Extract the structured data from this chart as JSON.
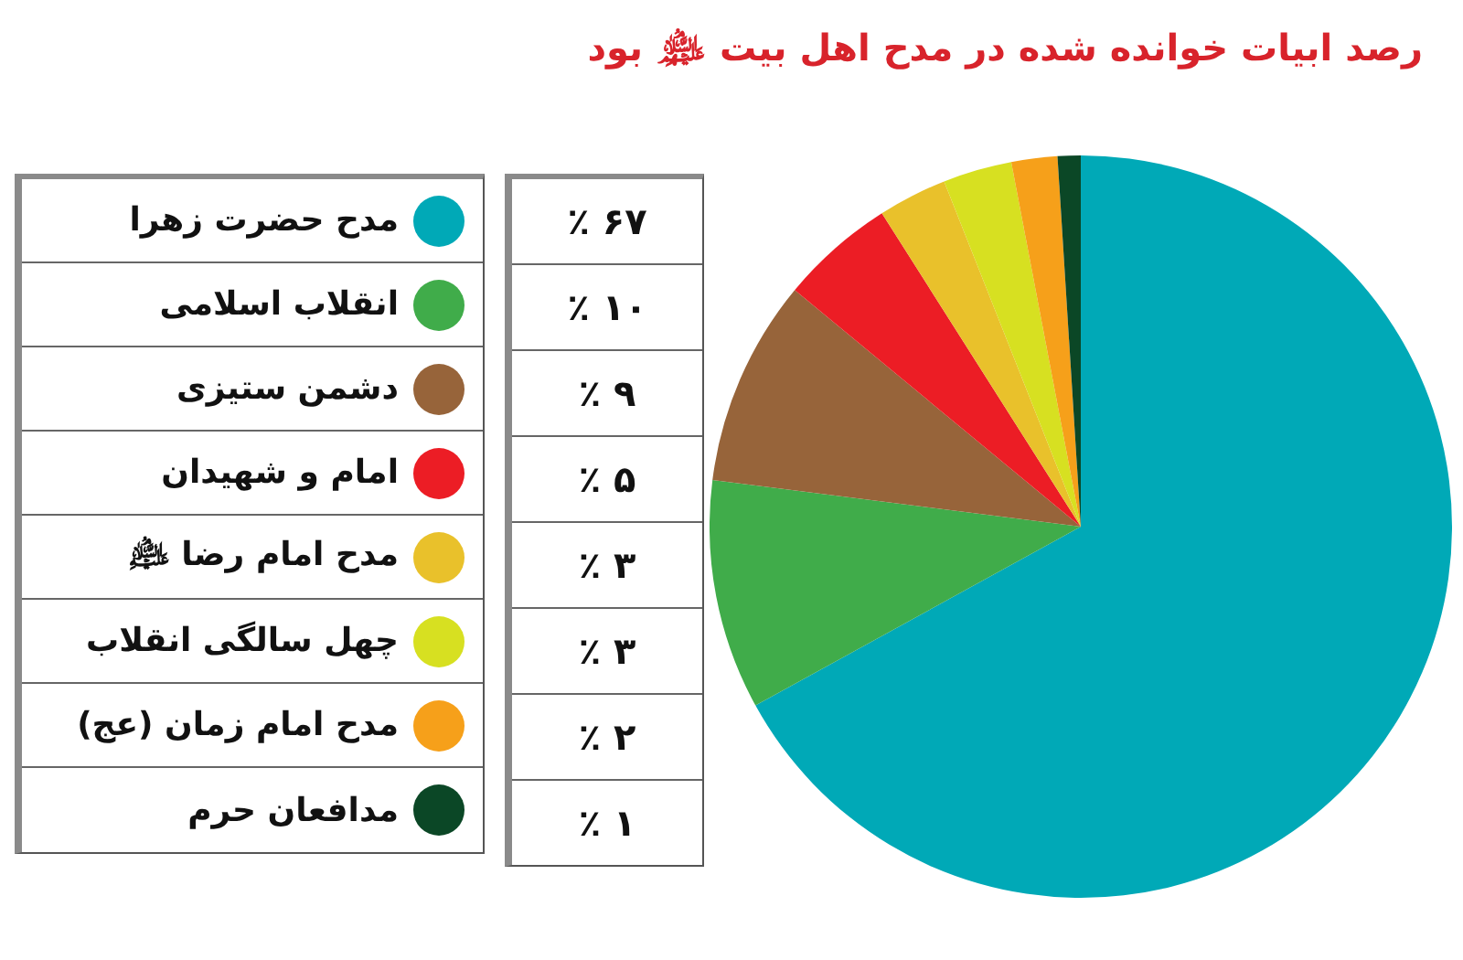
{
  "chart_data": {
    "type": "pie",
    "title": "رصد ابیات خوانده شده در مدح اهل بیت ﵈ بود",
    "categories": [
      "مدح حضرت زهرا",
      "انقلاب اسلامی",
      "دشمن ستیزی",
      "امام و شهیدان",
      "مدح امام رضا ﵇",
      "چهل سالگی انقلاب",
      "مدح امام زمان (عج)",
      "مدافعان حرم"
    ],
    "values": [
      67,
      10,
      9,
      5,
      3,
      3,
      2,
      1
    ],
    "colors": [
      "#00a9b7",
      "#40ac4a",
      "#97643a",
      "#ec1d25",
      "#e9c12b",
      "#d7e021",
      "#f6a01a",
      "#0b4726"
    ],
    "value_labels": [
      "۶۷ ٪",
      "۱۰ ٪",
      "۹ ٪",
      "۵ ٪",
      "۳ ٪",
      "۳ ٪",
      "۲ ٪",
      "۱ ٪"
    ],
    "legend": "left"
  }
}
